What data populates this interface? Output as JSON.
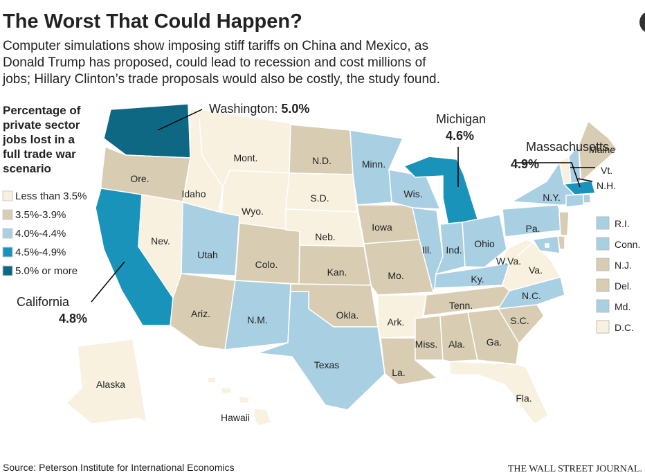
{
  "header": {
    "title": "The Worst That Could Happen?",
    "subtitle": [
      "Computer simulations show imposing stiff tariffs on China and Mexico, as",
      "Donald Trump has proposed, could lead to recession and cost millions of",
      "jobs; Hillary Clinton’s trade proposals would also be costly, the study found."
    ]
  },
  "legend": {
    "title": [
      "Percentage of",
      "private sector",
      "jobs lost in a",
      "full trade war",
      "scenario"
    ],
    "items": [
      {
        "label": "Less than 3.5%",
        "color": "#f9f1df"
      },
      {
        "label": "3.5%-3.9%",
        "color": "#d8cdb3"
      },
      {
        "label": "4.0%-4.4%",
        "color": "#a9cfe2"
      },
      {
        "label": "4.5%-4.9%",
        "color": "#1a93bb"
      },
      {
        "label": "5.0% or more",
        "color": "#0e6884"
      }
    ]
  },
  "states": [
    {
      "label": "Washington:",
      "value": "5.0%",
      "category": 4
    },
    {
      "label": "Ore.",
      "category": 1
    },
    {
      "label": "California",
      "value": "4.8%",
      "category": 3
    },
    {
      "label": "Nev.",
      "category": 0
    },
    {
      "label": "Idaho",
      "category": 0
    },
    {
      "label": "Mont.",
      "category": 0
    },
    {
      "label": "Wyo.",
      "category": 0
    },
    {
      "label": "Utah",
      "category": 2
    },
    {
      "label": "Colo.",
      "category": 1
    },
    {
      "label": "Ariz.",
      "category": 1
    },
    {
      "label": "N.M.",
      "category": 2
    },
    {
      "label": "N.D.",
      "category": 1
    },
    {
      "label": "S.D.",
      "category": 0
    },
    {
      "label": "Neb.",
      "category": 0
    },
    {
      "label": "Kan.",
      "category": 1
    },
    {
      "label": "Okla.",
      "category": 1
    },
    {
      "label": "Texas",
      "category": 2
    },
    {
      "label": "Minn.",
      "category": 2
    },
    {
      "label": "Iowa",
      "category": 1
    },
    {
      "label": "Mo.",
      "category": 1
    },
    {
      "label": "Ark.",
      "category": 0
    },
    {
      "label": "La.",
      "category": 1
    },
    {
      "label": "Wis.",
      "category": 2
    },
    {
      "label": "Ill.",
      "category": 2
    },
    {
      "label": "Michigan",
      "value": "4.6%",
      "category": 3
    },
    {
      "label": "Ind.",
      "category": 2
    },
    {
      "label": "Ohio",
      "category": 2
    },
    {
      "label": "Ky.",
      "category": 2
    },
    {
      "label": "Tenn.",
      "category": 1
    },
    {
      "label": "Miss.",
      "category": 1
    },
    {
      "label": "Ala.",
      "category": 1
    },
    {
      "label": "Ga.",
      "category": 1
    },
    {
      "label": "Fla.",
      "category": 0
    },
    {
      "label": "S.C.",
      "category": 1
    },
    {
      "label": "N.C.",
      "category": 2
    },
    {
      "label": "Va.",
      "category": 0
    },
    {
      "label": "W.Va.",
      "category": 0
    },
    {
      "label": "Pa.",
      "category": 2
    },
    {
      "label": "N.Y.",
      "category": 2
    },
    {
      "label": "Vt.",
      "category": 0
    },
    {
      "label": "N.H.",
      "category": 2
    },
    {
      "label": "Maine",
      "category": 1
    },
    {
      "label": "Massachusetts",
      "value": "4.9%",
      "category": 3
    },
    {
      "label": "R.I.",
      "category": 2
    },
    {
      "label": "Conn.",
      "category": 2
    },
    {
      "label": "N.J.",
      "category": 1
    },
    {
      "label": "Del.",
      "category": 1
    },
    {
      "label": "Md.",
      "category": 2
    },
    {
      "label": "D.C.",
      "category": 0
    },
    {
      "label": "Alaska",
      "category": 0
    },
    {
      "label": "Hawaii",
      "category": 0
    }
  ],
  "footer": {
    "source": "Source: Peterson Institute for International Economics",
    "publisher": "THE WALL STREET JOURNAL."
  }
}
